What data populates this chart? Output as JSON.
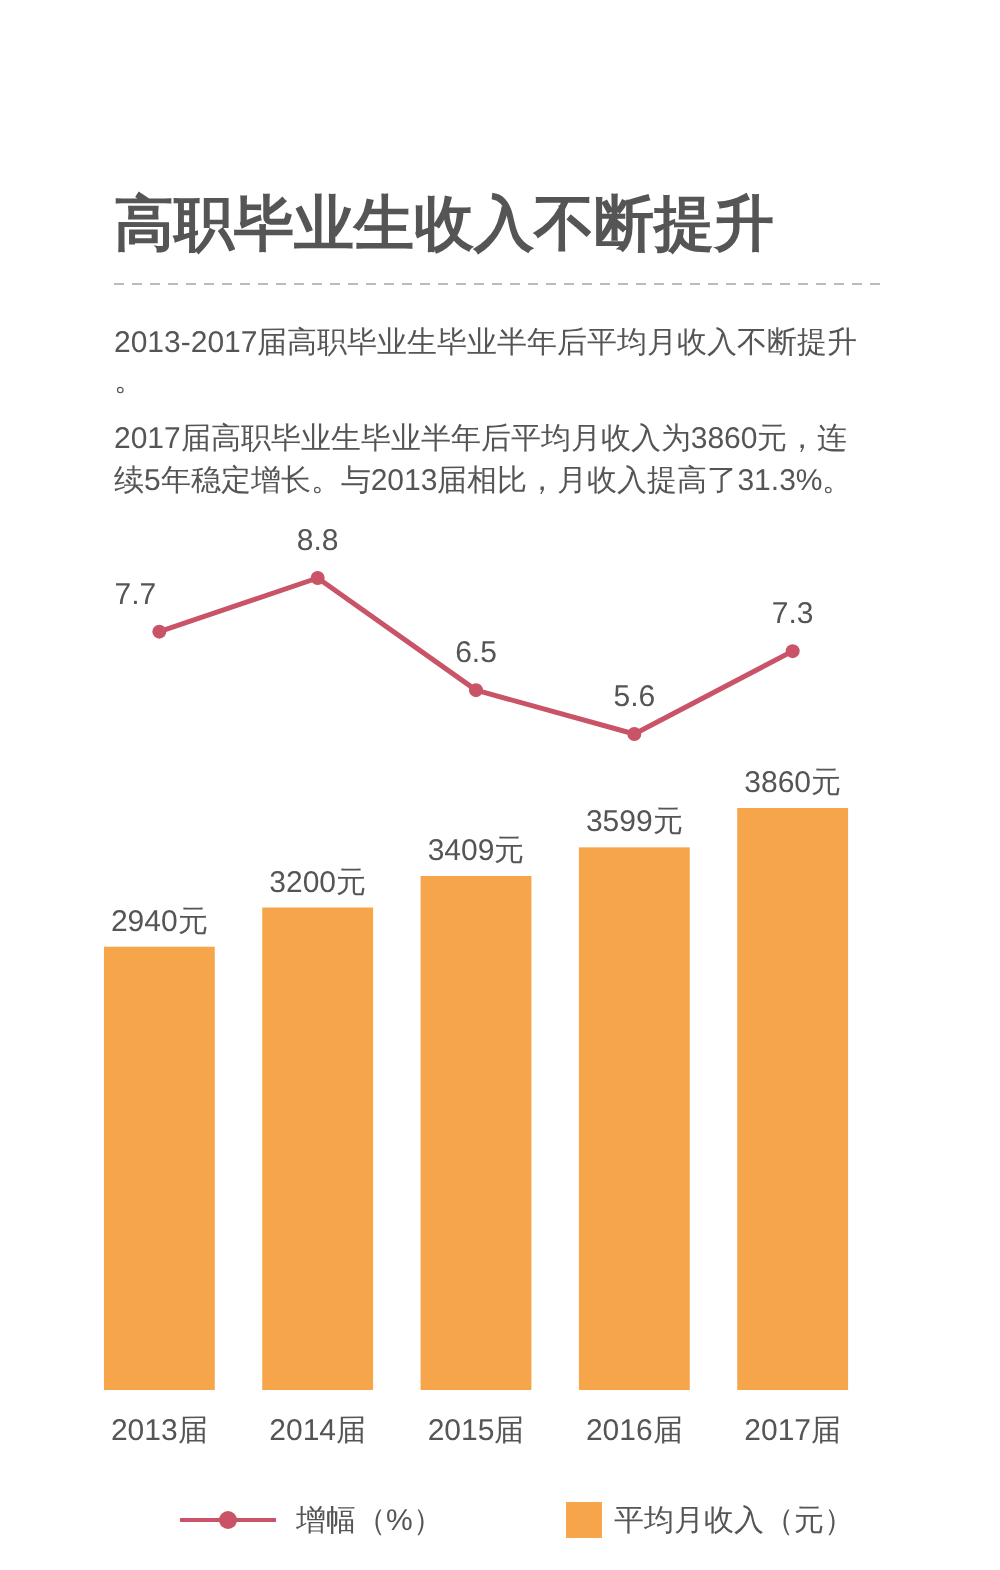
{
  "chart_data": [
    {
      "type": "line",
      "title": "高职毕业生收入不断提升",
      "subtitle": "2013-2017届高职毕业生毕业半年后平均月收入不断提升。",
      "annotations": [
        "2017届高职毕业生毕业半年后平均月收入为3860元，连续5年稳定增长。与2013届相比，月收入提高了31.3%。"
      ],
      "categories": [
        null,
        null,
        null,
        null,
        null
      ],
      "series": [
        {
          "name": "增幅（%）",
          "color": "#c95468",
          "values": [
            7.7,
            8.8,
            6.5,
            5.6,
            7.3
          ]
        }
      ],
      "data_labels": true,
      "marker": "circle",
      "legend": "bottom"
    },
    {
      "type": "bar",
      "categories": [
        "2013届",
        "2014届",
        "2015届",
        "2016届",
        "2017届"
      ],
      "tick_labels": "x",
      "series": [
        {
          "name": "平均月收入（元）",
          "type": "bar",
          "color": "#f6a54b",
          "values": [
            2940,
            3200,
            3409,
            3599,
            3860
          ],
          "value_labels": [
            "2940元",
            "3200元",
            "3409元",
            "3599元",
            "3860元"
          ]
        }
      ],
      "legend": "bottom"
    }
  ]
}
